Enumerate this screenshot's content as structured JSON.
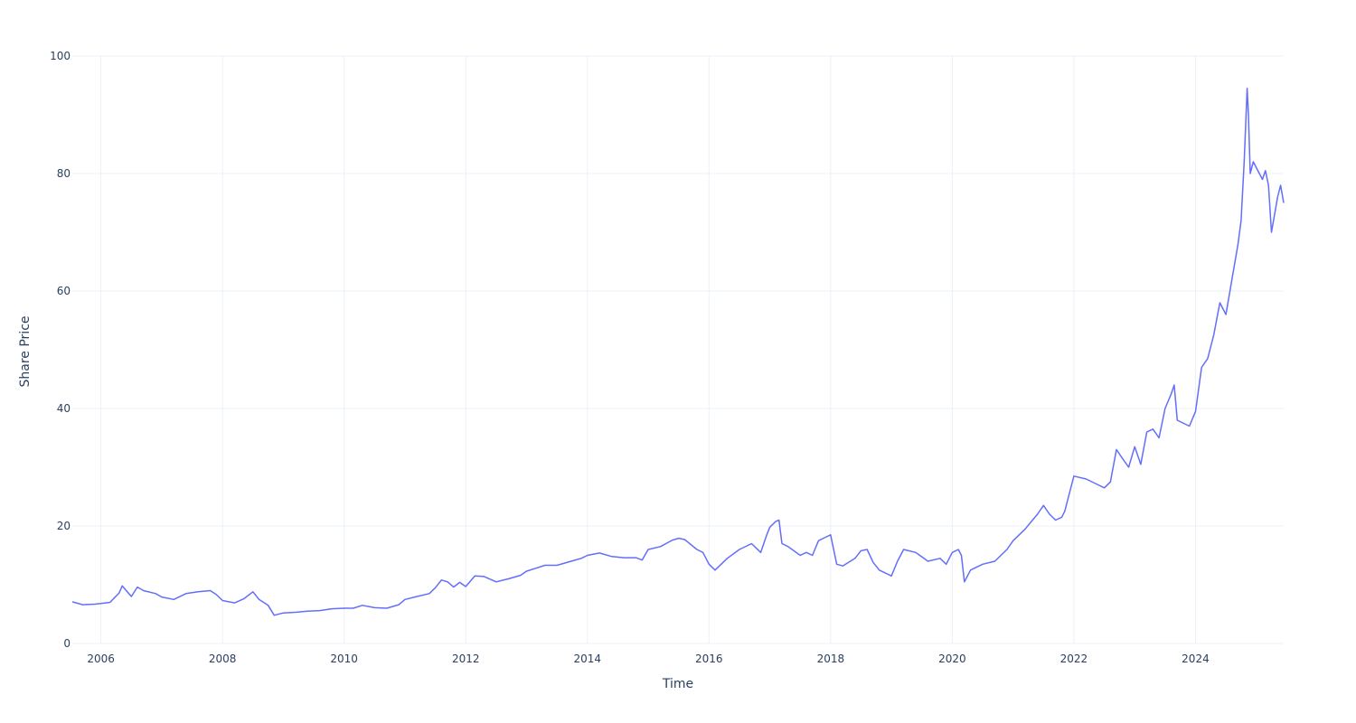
{
  "chart_data": {
    "type": "line",
    "title": "",
    "xlabel": "Time",
    "ylabel": "Share Price",
    "xlim": [
      2005.53,
      2025.45
    ],
    "ylim": [
      0,
      100
    ],
    "x_ticks": [
      2006,
      2008,
      2010,
      2012,
      2014,
      2016,
      2018,
      2020,
      2022,
      2024
    ],
    "x_tick_labels": [
      "2006",
      "2008",
      "2010",
      "2012",
      "2014",
      "2016",
      "2018",
      "2020",
      "2022",
      "2024"
    ],
    "y_ticks": [
      0,
      20,
      40,
      60,
      80,
      100
    ],
    "y_tick_labels": [
      "0",
      "20",
      "40",
      "60",
      "80",
      "100"
    ],
    "grid": true,
    "legend": "none",
    "colors": {
      "line": "#636efa",
      "grid": "#ebf0f8",
      "text": "#2a3f5f"
    },
    "series": [
      {
        "x": [
          2005.53,
          2005.7,
          2005.9,
          2006.0,
          2006.15,
          2006.3,
          2006.35,
          2006.5,
          2006.6,
          2006.7,
          2006.9,
          2007.0,
          2007.2,
          2007.4,
          2007.6,
          2007.8,
          2007.9,
          2008.0,
          2008.2,
          2008.35,
          2008.5,
          2008.6,
          2008.75,
          2008.85,
          2009.0,
          2009.2,
          2009.4,
          2009.6,
          2009.8,
          2010.0,
          2010.15,
          2010.3,
          2010.5,
          2010.7,
          2010.9,
          2011.0,
          2011.2,
          2011.4,
          2011.5,
          2011.6,
          2011.7,
          2011.8,
          2011.9,
          2012.0,
          2012.15,
          2012.3,
          2012.5,
          2012.7,
          2012.9,
          2013.0,
          2013.15,
          2013.3,
          2013.5,
          2013.7,
          2013.9,
          2014.0,
          2014.2,
          2014.4,
          2014.6,
          2014.8,
          2014.9,
          2015.0,
          2015.2,
          2015.4,
          2015.5,
          2015.6,
          2015.8,
          2015.9,
          2016.0,
          2016.1,
          2016.3,
          2016.5,
          2016.7,
          2016.85,
          2016.95,
          2017.0,
          2017.1,
          2017.15,
          2017.2,
          2017.3,
          2017.5,
          2017.6,
          2017.7,
          2017.8,
          2017.9,
          2018.0,
          2018.1,
          2018.2,
          2018.4,
          2018.5,
          2018.6,
          2018.7,
          2018.8,
          2019.0,
          2019.1,
          2019.2,
          2019.4,
          2019.6,
          2019.8,
          2019.9,
          2020.0,
          2020.1,
          2020.15,
          2020.2,
          2020.3,
          2020.5,
          2020.7,
          2020.9,
          2021.0,
          2021.2,
          2021.4,
          2021.5,
          2021.6,
          2021.7,
          2021.8,
          2021.85,
          2022.0,
          2022.2,
          2022.4,
          2022.5,
          2022.6,
          2022.7,
          2022.8,
          2022.9,
          2023.0,
          2023.1,
          2023.2,
          2023.3,
          2023.4,
          2023.5,
          2023.6,
          2023.65,
          2023.7,
          2023.9,
          2024.0,
          2024.1,
          2024.2,
          2024.3,
          2024.4,
          2024.5,
          2024.6,
          2024.7,
          2024.75,
          2024.8,
          2024.85,
          2024.87,
          2024.9,
          2024.95,
          2025.0,
          2025.05,
          2025.1,
          2025.15,
          2025.2,
          2025.25,
          2025.3,
          2025.35,
          2025.4,
          2025.45
        ],
        "y": [
          7.1,
          6.6,
          6.7,
          6.8,
          7.0,
          8.6,
          9.8,
          8.0,
          9.6,
          9.0,
          8.5,
          7.9,
          7.5,
          8.5,
          8.8,
          9.0,
          8.3,
          7.3,
          6.9,
          7.6,
          8.8,
          7.5,
          6.5,
          4.8,
          5.2,
          5.3,
          5.5,
          5.6,
          5.9,
          6.0,
          6.0,
          6.5,
          6.1,
          6.0,
          6.6,
          7.5,
          8.0,
          8.5,
          9.5,
          10.8,
          10.5,
          9.6,
          10.4,
          9.7,
          11.5,
          11.4,
          10.5,
          11.0,
          11.6,
          12.3,
          12.8,
          13.3,
          13.3,
          13.9,
          14.5,
          15.0,
          15.4,
          14.8,
          14.6,
          14.6,
          14.2,
          16.0,
          16.5,
          17.6,
          17.9,
          17.7,
          16.0,
          15.5,
          13.5,
          12.5,
          14.5,
          16.0,
          17.0,
          15.5,
          18.5,
          19.8,
          20.8,
          21.0,
          17.0,
          16.5,
          15.0,
          15.5,
          15.0,
          17.5,
          18.0,
          18.5,
          13.5,
          13.2,
          14.5,
          15.8,
          16.0,
          13.8,
          12.5,
          11.5,
          14.0,
          16.0,
          15.5,
          14.0,
          14.5,
          13.5,
          15.5,
          16.0,
          15.0,
          10.5,
          12.5,
          13.5,
          14.0,
          16.0,
          17.5,
          19.5,
          22.0,
          23.5,
          22.0,
          21.0,
          21.5,
          22.5,
          28.5,
          28.0,
          27.0,
          26.5,
          27.5,
          33.0,
          31.5,
          30.0,
          33.5,
          30.5,
          36.0,
          36.5,
          35.0,
          40.0,
          42.5,
          44.0,
          38.0,
          37.0,
          39.5,
          47.0,
          48.5,
          52.5,
          58.0,
          56.0,
          62.0,
          68.0,
          72.0,
          82.0,
          94.5,
          90.0,
          80.0,
          82.0,
          81.0,
          80.0,
          79.0,
          80.5,
          78.0,
          70.0,
          73.0,
          76.0,
          78.0,
          75.0
        ]
      }
    ]
  }
}
